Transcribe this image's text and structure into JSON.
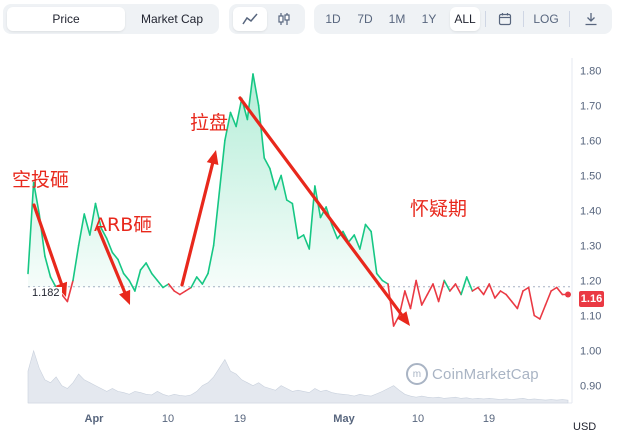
{
  "toolbar": {
    "type_tabs": [
      "Price",
      "Market Cap"
    ],
    "active_type": "Price",
    "chart_icons": [
      "line-chart-icon",
      "candlestick-icon"
    ],
    "ranges": [
      "1D",
      "7D",
      "1M",
      "1Y",
      "ALL"
    ],
    "active_range": "ALL",
    "calendar_icon": "calendar-icon",
    "log_label": "LOG",
    "download_icon": "download-icon"
  },
  "currency": "USD",
  "watermark": "CoinMarketCap",
  "current_price_label": "1.16",
  "start_price_label": "1.182",
  "annotations": [
    "空投砸",
    "ARB砸",
    "拉盘",
    "怀疑期"
  ],
  "colors": {
    "up": "#16c784",
    "down": "#ea3943",
    "arrow": "#e8281c",
    "volume": "#cfd6e4"
  },
  "chart_data": {
    "type": "line",
    "title": "",
    "xlabel": "",
    "ylabel": "",
    "x_ticks": [
      "Apr",
      "10",
      "19",
      "May",
      "10",
      "19"
    ],
    "y_ticks": [
      "0.90",
      "1.00",
      "1.10",
      "1.20",
      "1.30",
      "1.40",
      "1.50",
      "1.60",
      "1.70",
      "1.80"
    ],
    "ylim": [
      0.85,
      1.83
    ],
    "baseline": 1.182,
    "grid": false,
    "series": [
      {
        "values": [
          1.22,
          1.48,
          1.39,
          1.27,
          1.21,
          1.18,
          1.16,
          1.14,
          1.2,
          1.3,
          1.39,
          1.33,
          1.42,
          1.35,
          1.32,
          1.28,
          1.26,
          1.22,
          1.2,
          1.17,
          1.23,
          1.25,
          1.22,
          1.2,
          1.18,
          1.19,
          1.17,
          1.16,
          1.17,
          1.18,
          1.21,
          1.19,
          1.22,
          1.3,
          1.45,
          1.6,
          1.68,
          1.64,
          1.72,
          1.66,
          1.79,
          1.7,
          1.55,
          1.52,
          1.46,
          1.5,
          1.43,
          1.42,
          1.32,
          1.33,
          1.29,
          1.47,
          1.38,
          1.41,
          1.36,
          1.32,
          1.34,
          1.31,
          1.33,
          1.29,
          1.36,
          1.34,
          1.22,
          1.2,
          1.19,
          1.07,
          1.1,
          1.17,
          1.12,
          1.2,
          1.13,
          1.16,
          1.19,
          1.14,
          1.2,
          1.17,
          1.19,
          1.16,
          1.21,
          1.17,
          1.18,
          1.16,
          1.19,
          1.15,
          1.17,
          1.16,
          1.14,
          1.12,
          1.17,
          1.18,
          1.1,
          1.09,
          1.13,
          1.17,
          1.18,
          1.16,
          1.16
        ]
      }
    ],
    "volume": [
      0.55,
      0.9,
      0.6,
      0.4,
      0.35,
      0.45,
      0.3,
      0.25,
      0.35,
      0.5,
      0.4,
      0.35,
      0.3,
      0.25,
      0.2,
      0.25,
      0.2,
      0.18,
      0.15,
      0.2,
      0.18,
      0.15,
      0.14,
      0.2,
      0.15,
      0.12,
      0.15,
      0.13,
      0.12,
      0.14,
      0.2,
      0.3,
      0.35,
      0.45,
      0.6,
      0.75,
      0.55,
      0.5,
      0.4,
      0.35,
      0.3,
      0.35,
      0.28,
      0.25,
      0.22,
      0.3,
      0.25,
      0.2,
      0.22,
      0.2,
      0.18,
      0.25,
      0.2,
      0.22,
      0.18,
      0.16,
      0.15,
      0.14,
      0.12,
      0.15,
      0.13,
      0.12,
      0.16,
      0.2,
      0.25,
      0.3,
      0.22,
      0.15,
      0.12,
      0.1,
      0.12,
      0.1,
      0.09,
      0.1,
      0.08,
      0.09,
      0.1,
      0.08,
      0.09,
      0.07,
      0.08,
      0.07,
      0.08,
      0.07,
      0.06,
      0.07,
      0.06,
      0.07,
      0.08,
      0.06,
      0.07,
      0.06,
      0.05,
      0.06,
      0.05,
      0.06,
      0.05
    ]
  }
}
